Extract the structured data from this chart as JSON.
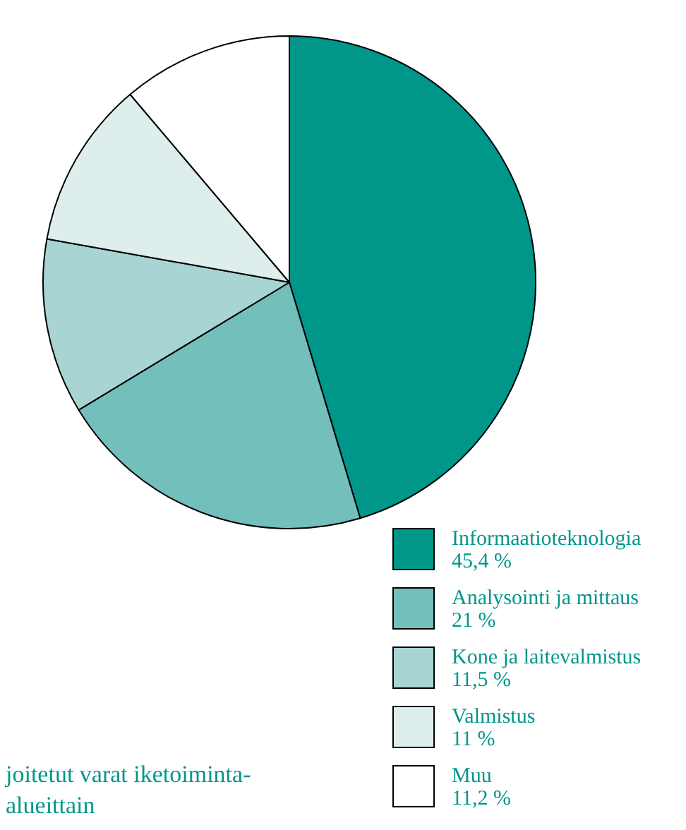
{
  "chart_data": {
    "type": "pie",
    "title": "joitetut varat iketoiminta-alueittain",
    "categories": [
      "Informaatioteknologia",
      "Analysointi ja mittaus",
      "Kone ja laitevalmistus",
      "Valmistus",
      "Muu"
    ],
    "values": [
      45.4,
      21,
      11.5,
      11,
      11.2
    ],
    "value_labels": [
      "45,4 %",
      "21 %",
      "11,5 %",
      "11 %",
      "11,2 %"
    ],
    "colors": [
      "#00968a",
      "#72bfbc",
      "#a8d5d4",
      "#ddeeed",
      "#ffffff"
    ],
    "legend": "bottom right"
  }
}
